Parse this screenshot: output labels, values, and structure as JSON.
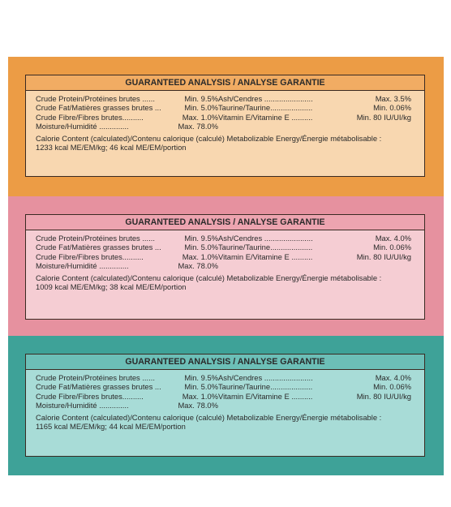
{
  "sections": [
    {
      "header": "GUARANTEED ANALYSIS / ANALYSE GARANTIE",
      "left": [
        {
          "label": "Crude Protein/Protéines brutes ......",
          "value": "Min. 9.5%"
        },
        {
          "label": "Crude Fat/Matières grasses brutes ...",
          "value": "Min. 5.0%"
        },
        {
          "label": "Crude Fibre/Fibres brutes..........",
          "value": "Max. 1.0%"
        },
        {
          "label": "Moisture/Humidité ..............",
          "value": "Max. 78.0%"
        }
      ],
      "right": [
        {
          "label": "Ash/Cendres .......................",
          "value": "Max. 3.5%"
        },
        {
          "label": "Taurine/Taurine....................",
          "value": "Min. 0.06%"
        },
        {
          "label": "Vitamin E/Vitamine E ..........",
          "value": "Min. 80 IU/UI/kg"
        }
      ],
      "calorie_line1": "Calorie Content (calculated)/Contenu calorique (calculé) Metabolizable Energy/Énergie métabolisable :",
      "calorie_line2": "1233 kcal ME/EM/kg; 46 kcal ME/EM/portion"
    },
    {
      "header": "GUARANTEED ANALYSIS / ANALYSE GARANTIE",
      "left": [
        {
          "label": "Crude Protein/Protéines brutes ......",
          "value": "Min. 9.5%"
        },
        {
          "label": "Crude Fat/Matières grasses brutes ...",
          "value": "Min. 5.0%"
        },
        {
          "label": "Crude Fibre/Fibres brutes..........",
          "value": "Max. 1.0%"
        },
        {
          "label": "Moisture/Humidité ..............",
          "value": "Max. 78.0%"
        }
      ],
      "right": [
        {
          "label": "Ash/Cendres .......................",
          "value": "Max. 4.0%"
        },
        {
          "label": "Taurine/Taurine....................",
          "value": "Min. 0.06%"
        },
        {
          "label": "Vitamin E/Vitamine E ..........",
          "value": "Min. 80 IU/UI/kg"
        }
      ],
      "calorie_line1": "Calorie Content (calculated)/Contenu calorique (calculé) Metabolizable Energy/Énergie métabolisable :",
      "calorie_line2": "1009 kcal ME/EM/kg; 38 kcal ME/EM/portion"
    },
    {
      "header": "GUARANTEED ANALYSIS / ANALYSE GARANTIE",
      "left": [
        {
          "label": "Crude Protein/Protéines brutes ......",
          "value": "Min. 9.5%"
        },
        {
          "label": "Crude Fat/Matières grasses brutes ...",
          "value": "Min. 5.0%"
        },
        {
          "label": "Crude Fibre/Fibres brutes..........",
          "value": "Max. 1.0%"
        },
        {
          "label": "Moisture/Humidité ..............",
          "value": "Max. 78.0%"
        }
      ],
      "right": [
        {
          "label": "Ash/Cendres .......................",
          "value": "Max. 4.0%"
        },
        {
          "label": "Taurine/Taurine....................",
          "value": "Min. 0.06%"
        },
        {
          "label": "Vitamin E/Vitamine E ..........",
          "value": "Min. 80 IU/UI/kg"
        }
      ],
      "calorie_line1": "Calorie Content (calculated)/Contenu calorique (calculé) Metabolizable Energy/Énergie métabolisable :",
      "calorie_line2": "1165 kcal ME/EM/kg; 44 kcal ME/EM/portion"
    }
  ],
  "colors": {
    "band_orange": "#ec9c45",
    "band_pink": "#e6919f",
    "band_teal": "#3ea298",
    "box_orange": "#f8d7b0",
    "box_pink": "#f5cdd3",
    "box_teal": "#a8dcd7"
  }
}
